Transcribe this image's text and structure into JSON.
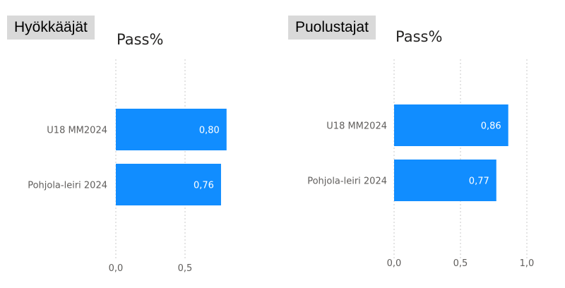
{
  "colors": {
    "bar": "#118dff",
    "grid": "#c8c8c8",
    "tag_bg": "#d9d9d9"
  },
  "chart_data": [
    {
      "type": "bar",
      "orientation": "horizontal",
      "panel_label": "Hyökkääjät",
      "title": "Pass%",
      "categories": [
        "U18 MM2024",
        "Pohjola-leiri 2024"
      ],
      "values": [
        0.8,
        0.76
      ],
      "data_labels": [
        "0,80",
        "0,76"
      ],
      "xlim": [
        0,
        0.8
      ],
      "xticks": [
        0,
        0.5
      ],
      "xtick_labels": [
        "0,0",
        "0,5"
      ],
      "grid": true,
      "legend": "none"
    },
    {
      "type": "bar",
      "orientation": "horizontal",
      "panel_label": "Puolustajat",
      "title": "Pass%",
      "categories": [
        "U18 MM2024",
        "Pohjola-leiri 2024"
      ],
      "values": [
        0.86,
        0.77
      ],
      "data_labels": [
        "0,86",
        "0,77"
      ],
      "xlim": [
        0,
        1.0
      ],
      "xticks": [
        0,
        0.5,
        1.0
      ],
      "xtick_labels": [
        "0,0",
        "0,5",
        "1,0"
      ],
      "grid": true,
      "legend": "none"
    }
  ]
}
